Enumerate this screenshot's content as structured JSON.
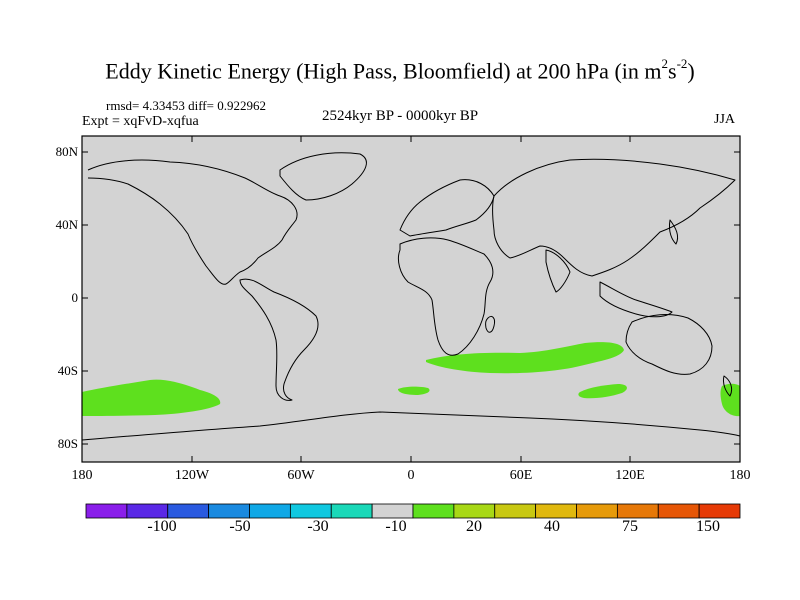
{
  "title": {
    "main": "Eddy Kinetic Energy (High Pass, Bloomfield) at 200 hPa (in m",
    "sup1": "2",
    "mid": "s",
    "sup2": "-2",
    "end": ")"
  },
  "stats": "rmsd= 4.33453 diff= 0.922962",
  "experiment": "Expt = xqFvD-xqfua",
  "period": "2524kyr BP - 0000kyr BP",
  "season": "JJA",
  "map": {
    "projection": "cylindrical-equidistant",
    "background_color": "#d3d3d3",
    "anomaly_color": "#5ee01e",
    "lat_ticks": [
      "80N",
      "40N",
      "0",
      "40S",
      "80S"
    ],
    "lon_ticks": [
      "180",
      "120W",
      "60W",
      "0",
      "60E",
      "120E",
      "180"
    ]
  },
  "colorbar": {
    "colors": [
      "#8a1eea",
      "#5a28e6",
      "#2a5ae0",
      "#1a8ae0",
      "#10a8e6",
      "#10c8e0",
      "#1ad8b8",
      "#d3d3d3",
      "#5ee01e",
      "#a8d816",
      "#c8c812",
      "#e0b80e",
      "#e69a0a",
      "#e67808",
      "#e65606",
      "#e63a06"
    ],
    "labels": [
      "-100",
      "-50",
      "-30",
      "-10",
      "20",
      "40",
      "75",
      "150"
    ]
  }
}
